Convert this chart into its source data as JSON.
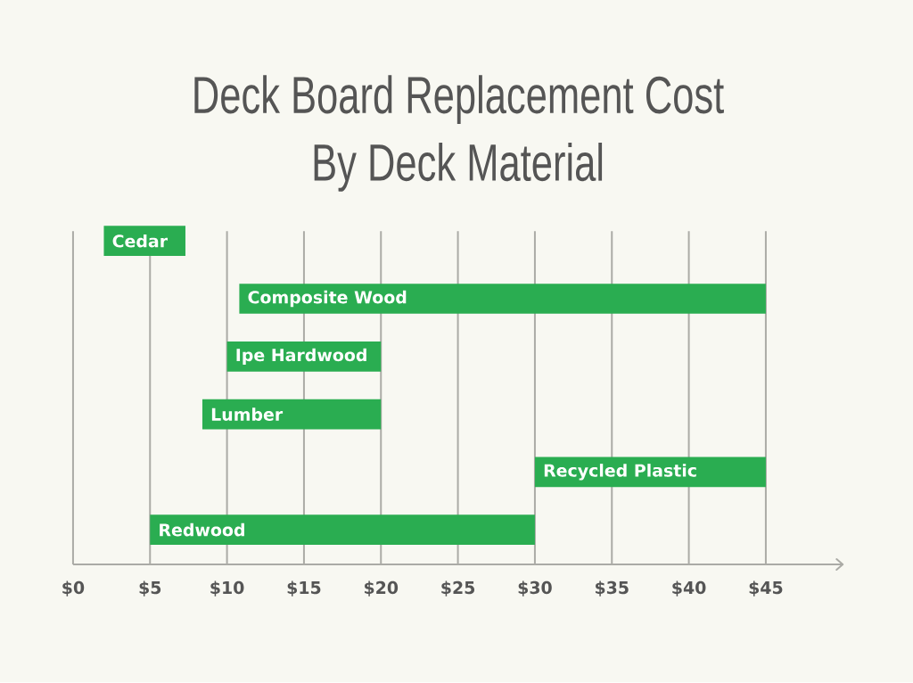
{
  "chart_data": {
    "type": "bar",
    "orientation": "horizontal",
    "title": "Deck Board Replacement Cost By Deck Material",
    "categories": [
      "Cedar",
      "Composite Wood",
      "Ipe Hardwood",
      "Lumber",
      "Recycled Plastic",
      "Redwood"
    ],
    "base": [
      2,
      10.8,
      10,
      8.4,
      30,
      5
    ],
    "values": [
      5.3,
      34.2,
      10,
      11.6,
      15,
      25
    ],
    "color": "#2aad51",
    "xlim": [
      0,
      50
    ],
    "xticks": [
      {
        "value": 0,
        "label": "$0"
      },
      {
        "value": 5,
        "label": "$5"
      },
      {
        "value": 10,
        "label": "$10"
      },
      {
        "value": 15,
        "label": "$15"
      },
      {
        "value": 20,
        "label": "$20"
      },
      {
        "value": 25,
        "label": "$25"
      },
      {
        "value": 30,
        "label": "$30"
      },
      {
        "value": 35,
        "label": "$35"
      },
      {
        "value": 40,
        "label": "$40"
      },
      {
        "value": 45,
        "label": "$45"
      }
    ],
    "grid": "x"
  }
}
